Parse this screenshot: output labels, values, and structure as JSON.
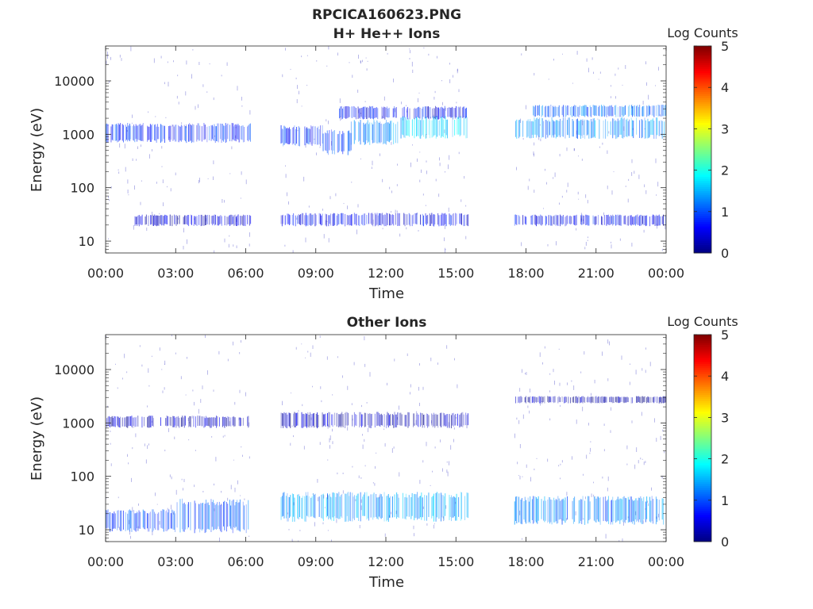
{
  "chart_data": {
    "title": "RPCICA160623.PNG",
    "panels": [
      {
        "type": "heatmap",
        "title": "H+ He++ Ions",
        "xlabel": "Time",
        "ylabel": "Energy (eV)",
        "x_ticks": [
          "00:00",
          "03:00",
          "06:00",
          "09:00",
          "12:00",
          "15:00",
          "18:00",
          "21:00",
          "00:00"
        ],
        "x_range_hours": [
          0,
          24
        ],
        "y_scale": "log",
        "y_range": [
          6,
          45000
        ],
        "y_ticks": [
          "10",
          "100",
          "1000",
          "10000"
        ],
        "y_tick_values": [
          10,
          100,
          1000,
          10000
        ],
        "colorbar": {
          "label": "Log Counts",
          "range": [
            0,
            5
          ],
          "ticks": [
            "0",
            "1",
            "2",
            "3",
            "4",
            "5"
          ],
          "colormap": "jet"
        },
        "data_gaps_hours": [
          [
            6.2,
            7.5
          ],
          [
            15.5,
            17.5
          ]
        ],
        "bands": [
          {
            "x": [
              0.0,
              6.2
            ],
            "y": [
              750,
              1500
            ],
            "level": 0.8
          },
          {
            "x": [
              7.5,
              9.3
            ],
            "y": [
              650,
              1350
            ],
            "level": 0.8
          },
          {
            "x": [
              9.3,
              10.5
            ],
            "y": [
              450,
              1100
            ],
            "level": 0.9
          },
          {
            "x": [
              10.5,
              12.5
            ],
            "y": [
              700,
              1700
            ],
            "level": 1.3
          },
          {
            "x": [
              12.5,
              15.5
            ],
            "y": [
              900,
              2000
            ],
            "level": 1.6
          },
          {
            "x": [
              10.0,
              15.5
            ],
            "y": [
              2000,
              3200
            ],
            "level": 0.6
          },
          {
            "x": [
              17.5,
              24.0
            ],
            "y": [
              900,
              1900
            ],
            "level": 1.3
          },
          {
            "x": [
              18.3,
              24.0
            ],
            "y": [
              2200,
              3400
            ],
            "level": 1.1
          },
          {
            "x": [
              1.2,
              6.2
            ],
            "y": [
              20,
              30
            ],
            "level": 0.4
          },
          {
            "x": [
              7.5,
              15.5
            ],
            "y": [
              20,
              32
            ],
            "level": 0.6
          },
          {
            "x": [
              17.5,
              24.0
            ],
            "y": [
              20,
              30
            ],
            "level": 0.6
          }
        ]
      },
      {
        "type": "heatmap",
        "title": "Other Ions",
        "xlabel": "Time",
        "ylabel": "Energy (eV)",
        "x_ticks": [
          "00:00",
          "03:00",
          "06:00",
          "09:00",
          "12:00",
          "15:00",
          "18:00",
          "21:00",
          "00:00"
        ],
        "x_range_hours": [
          0,
          24
        ],
        "y_scale": "log",
        "y_range": [
          6,
          45000
        ],
        "y_ticks": [
          "10",
          "100",
          "1000",
          "10000"
        ],
        "y_tick_values": [
          10,
          100,
          1000,
          10000
        ],
        "colorbar": {
          "label": "Log Counts",
          "range": [
            0,
            5
          ],
          "ticks": [
            "0",
            "1",
            "2",
            "3",
            "4",
            "5"
          ],
          "colormap": "jet"
        },
        "data_gaps_hours": [
          [
            6.2,
            7.5
          ],
          [
            15.5,
            17.5
          ]
        ],
        "bands": [
          {
            "x": [
              0.0,
              6.2
            ],
            "y": [
              850,
              1300
            ],
            "level": 0.3
          },
          {
            "x": [
              7.5,
              15.5
            ],
            "y": [
              850,
              1500
            ],
            "level": 0.3
          },
          {
            "x": [
              17.5,
              24.0
            ],
            "y": [
              2400,
              3100
            ],
            "level": 0.2
          },
          {
            "x": [
              0.0,
              3.0
            ],
            "y": [
              10,
              22
            ],
            "level": 0.9
          },
          {
            "x": [
              3.0,
              6.2
            ],
            "y": [
              10,
              33
            ],
            "level": 1.0
          },
          {
            "x": [
              7.5,
              15.5
            ],
            "y": [
              16,
              45
            ],
            "level": 1.4
          },
          {
            "x": [
              17.5,
              24.0
            ],
            "y": [
              14,
              38
            ],
            "level": 1.2
          }
        ]
      }
    ]
  }
}
